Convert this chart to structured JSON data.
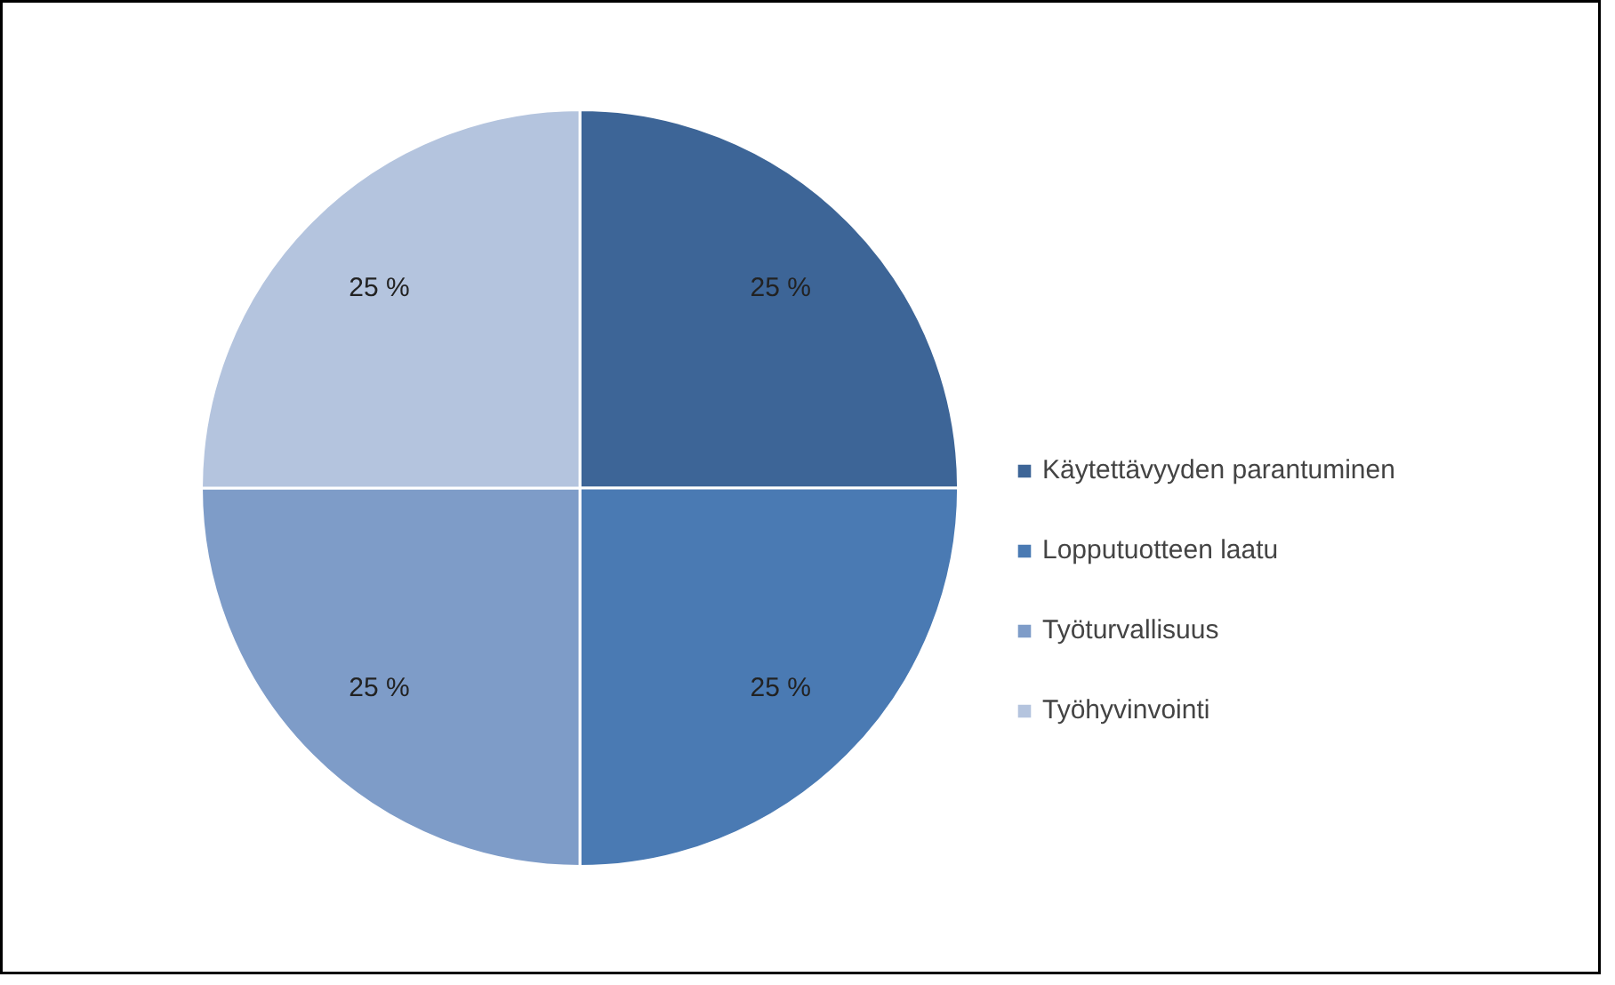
{
  "chart_data": {
    "type": "pie",
    "categories": [
      "Käytettävyyden parantuminen",
      "Lopputuotteen laatu",
      "Työturvallisuus",
      "Työhyvinvointi"
    ],
    "values": [
      25,
      25,
      25,
      25
    ],
    "colors": [
      "#3d6597",
      "#4a7ab3",
      "#7e9cc8",
      "#b4c4de"
    ],
    "value_labels": [
      "25 %",
      "25 %",
      "25 %",
      "25 %"
    ],
    "legend": "right"
  }
}
